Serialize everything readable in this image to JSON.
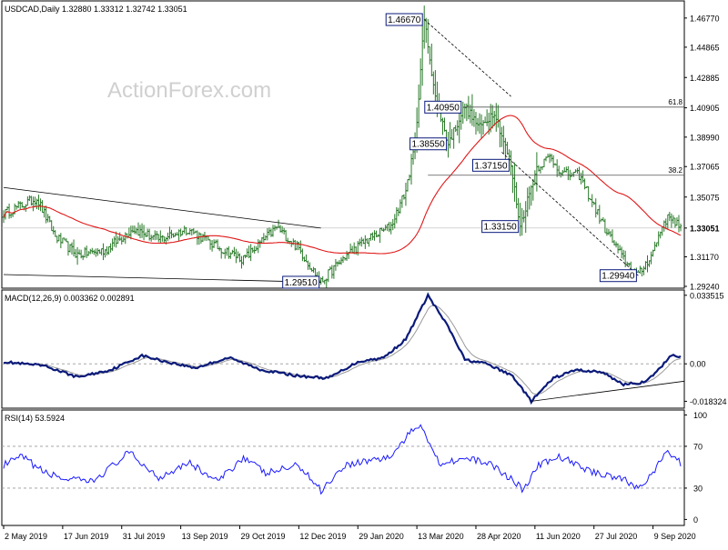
{
  "colors": {
    "price_bars": "#2a7a2a",
    "sma": "#e01818",
    "macd_line": "#0a1a7a",
    "signal_line": "#9a9a9a",
    "rsi_line": "#1a1aff",
    "trendline": "#000000",
    "level_line": "#555555",
    "grid_dash": "#999999",
    "watermark": "#d0d0d0",
    "label_border": "#0a1a7a"
  },
  "watermark": "ActionForex.com",
  "chart_data": [
    {
      "type": "ohlc",
      "panel": "price",
      "title": "USDCAD,Daily",
      "ohlc_readout": [
        "1.32880",
        "1.33312",
        "1.32742",
        "1.33051"
      ],
      "y_ticks": [
        "1.46770",
        "1.44865",
        "1.42885",
        "1.40905",
        "1.38990",
        "1.37065",
        "1.35075",
        "1.33051",
        "1.31170",
        "1.29240"
      ],
      "ylim": [
        1.2924,
        1.4777
      ],
      "x_tick_labels": [
        "2 May 2019",
        "17 Jun 2019",
        "31 Jul 2019",
        "13 Sep 2019",
        "29 Oct 2019",
        "12 Dec 2019",
        "29 Jan 2020",
        "13 Mar 2020",
        "28 Apr 2020",
        "11 Jun 2020",
        "27 Jul 2020",
        "9 Sep 2020"
      ],
      "x_tick_index": [
        0,
        32,
        64,
        96,
        128,
        160,
        192,
        224,
        256,
        288,
        320,
        352
      ],
      "current_price": 1.33051,
      "bars_count": 368,
      "anchors": [
        {
          "i": 0,
          "v": 1.34
        },
        {
          "i": 18,
          "v": 1.35
        },
        {
          "i": 28,
          "v": 1.325
        },
        {
          "i": 40,
          "v": 1.313
        },
        {
          "i": 55,
          "v": 1.316
        },
        {
          "i": 70,
          "v": 1.33
        },
        {
          "i": 84,
          "v": 1.323
        },
        {
          "i": 100,
          "v": 1.33
        },
        {
          "i": 116,
          "v": 1.318
        },
        {
          "i": 130,
          "v": 1.31
        },
        {
          "i": 148,
          "v": 1.331
        },
        {
          "i": 160,
          "v": 1.317
        },
        {
          "i": 172,
          "v": 1.2951
        },
        {
          "i": 185,
          "v": 1.312
        },
        {
          "i": 196,
          "v": 1.322
        },
        {
          "i": 210,
          "v": 1.332
        },
        {
          "i": 218,
          "v": 1.355
        },
        {
          "i": 223,
          "v": 1.385
        },
        {
          "i": 228,
          "v": 1.4667
        },
        {
          "i": 234,
          "v": 1.4165
        },
        {
          "i": 241,
          "v": 1.3855
        },
        {
          "i": 250,
          "v": 1.41
        },
        {
          "i": 258,
          "v": 1.396
        },
        {
          "i": 266,
          "v": 1.407
        },
        {
          "i": 275,
          "v": 1.3715
        },
        {
          "i": 280,
          "v": 1.3315
        },
        {
          "i": 289,
          "v": 1.37
        },
        {
          "i": 296,
          "v": 1.377
        },
        {
          "i": 303,
          "v": 1.366
        },
        {
          "i": 312,
          "v": 1.365
        },
        {
          "i": 326,
          "v": 1.33
        },
        {
          "i": 336,
          "v": 1.31
        },
        {
          "i": 344,
          "v": 1.2994
        },
        {
          "i": 352,
          "v": 1.315
        },
        {
          "i": 358,
          "v": 1.335
        },
        {
          "i": 362,
          "v": 1.338
        },
        {
          "i": 367,
          "v": 1.3305
        }
      ],
      "annotations": [
        {
          "text": "1.46670",
          "i": 228,
          "v": 1.4667,
          "side": "left"
        },
        {
          "text": "1.40950",
          "i": 249,
          "v": 1.4095,
          "side": "left"
        },
        {
          "text": "1.38550",
          "i": 241,
          "v": 1.3855,
          "side": "left"
        },
        {
          "text": "1.37150",
          "i": 275,
          "v": 1.3715,
          "side": "left"
        },
        {
          "text": "1.33150",
          "i": 280,
          "v": 1.3315,
          "side": "left"
        },
        {
          "text": "1.29940",
          "i": 344,
          "v": 1.2994,
          "side": "left"
        },
        {
          "text": "1.29510",
          "i": 172,
          "v": 1.2951,
          "side": "left"
        }
      ],
      "fib_levels": [
        {
          "label": "61.8",
          "v": 1.4095,
          "from_i": 249
        },
        {
          "label": "38.2",
          "v": 1.365,
          "from_i": 230
        }
      ],
      "trendlines": [
        {
          "from": {
            "i": 0,
            "v": 1.357
          },
          "to": {
            "i": 172,
            "v": 1.3305
          }
        },
        {
          "from": {
            "i": 0,
            "v": 1.3001
          },
          "to": {
            "i": 172,
            "v": 1.2951
          }
        },
        {
          "from": {
            "i": 228,
            "v": 1.4667
          },
          "to": {
            "i": 275,
            "v": 1.4165
          }
        },
        {
          "from": {
            "i": 270,
            "v": 1.38
          },
          "to": {
            "i": 344,
            "v": 1.2994
          }
        }
      ]
    },
    {
      "type": "line",
      "panel": "macd",
      "title": "MACD(12,26,9) 0.003362 0.002891",
      "macd": 0.003362,
      "signal": 0.002891,
      "y_ticks": [
        "0.033515",
        "0.00",
        "-0.018324"
      ],
      "ylim": [
        -0.0208,
        0.0352
      ],
      "anchors": [
        {
          "i": 0,
          "v": 0.001
        },
        {
          "i": 10,
          "v": 0.0
        },
        {
          "i": 22,
          "v": -0.001
        },
        {
          "i": 40,
          "v": -0.0065
        },
        {
          "i": 58,
          "v": -0.003
        },
        {
          "i": 75,
          "v": 0.004
        },
        {
          "i": 88,
          "v": 0.001
        },
        {
          "i": 104,
          "v": -0.002
        },
        {
          "i": 122,
          "v": 0.003
        },
        {
          "i": 140,
          "v": -0.003
        },
        {
          "i": 160,
          "v": -0.006
        },
        {
          "i": 176,
          "v": -0.007
        },
        {
          "i": 192,
          "v": 0.001
        },
        {
          "i": 206,
          "v": 0.003
        },
        {
          "i": 218,
          "v": 0.012
        },
        {
          "i": 230,
          "v": 0.0335
        },
        {
          "i": 241,
          "v": 0.018
        },
        {
          "i": 250,
          "v": 0.002
        },
        {
          "i": 262,
          "v": 0.0
        },
        {
          "i": 276,
          "v": -0.006
        },
        {
          "i": 286,
          "v": -0.0183
        },
        {
          "i": 298,
          "v": -0.007
        },
        {
          "i": 310,
          "v": -0.003
        },
        {
          "i": 324,
          "v": -0.004
        },
        {
          "i": 336,
          "v": -0.01
        },
        {
          "i": 348,
          "v": -0.009
        },
        {
          "i": 356,
          "v": -0.002
        },
        {
          "i": 362,
          "v": 0.0045
        },
        {
          "i": 367,
          "v": 0.0034
        }
      ],
      "trendline": {
        "from": {
          "i": 286,
          "v": -0.0183
        },
        "to": {
          "i": 367,
          "v": -0.0085
        }
      }
    },
    {
      "type": "line",
      "panel": "rsi",
      "title": "RSI(14) 53.5924",
      "value": 53.5924,
      "y_ticks": [
        "100",
        "70",
        "30",
        "0"
      ],
      "ylim": [
        -4,
        103
      ],
      "levels": [
        70,
        30
      ],
      "anchors": [
        {
          "i": 0,
          "v": 52
        },
        {
          "i": 10,
          "v": 60
        },
        {
          "i": 22,
          "v": 45
        },
        {
          "i": 35,
          "v": 38
        },
        {
          "i": 48,
          "v": 36
        },
        {
          "i": 68,
          "v": 64
        },
        {
          "i": 84,
          "v": 40
        },
        {
          "i": 100,
          "v": 55
        },
        {
          "i": 116,
          "v": 36
        },
        {
          "i": 130,
          "v": 60
        },
        {
          "i": 142,
          "v": 44
        },
        {
          "i": 160,
          "v": 52
        },
        {
          "i": 172,
          "v": 28
        },
        {
          "i": 185,
          "v": 52
        },
        {
          "i": 196,
          "v": 56
        },
        {
          "i": 210,
          "v": 60
        },
        {
          "i": 218,
          "v": 78
        },
        {
          "i": 226,
          "v": 92
        },
        {
          "i": 236,
          "v": 54
        },
        {
          "i": 248,
          "v": 58
        },
        {
          "i": 262,
          "v": 55
        },
        {
          "i": 276,
          "v": 38
        },
        {
          "i": 282,
          "v": 28
        },
        {
          "i": 290,
          "v": 52
        },
        {
          "i": 302,
          "v": 60
        },
        {
          "i": 318,
          "v": 46
        },
        {
          "i": 334,
          "v": 40
        },
        {
          "i": 344,
          "v": 30
        },
        {
          "i": 352,
          "v": 45
        },
        {
          "i": 360,
          "v": 65
        },
        {
          "i": 367,
          "v": 53.6
        }
      ]
    }
  ]
}
